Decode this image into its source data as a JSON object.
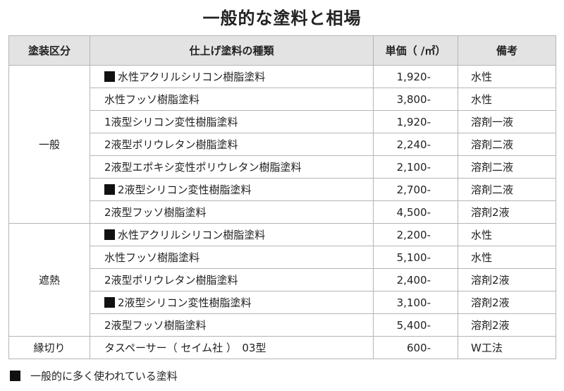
{
  "title": "一般的な塗料と相場",
  "headers": {
    "category": "塗装区分",
    "type": "仕上げ塗料の種類",
    "price": "単価（ /㎡）",
    "note": "備考"
  },
  "groups": [
    {
      "category": "一般",
      "rows": [
        {
          "marked": true,
          "name": "水性アクリルシリコン樹脂塗料",
          "price": "1,920-",
          "note": "水性"
        },
        {
          "marked": false,
          "name": "水性フッソ樹脂塗料",
          "price": "3,800-",
          "note": "水性"
        },
        {
          "marked": false,
          "name": "1液型シリコン変性樹脂塗料",
          "price": "1,920-",
          "note": "溶剤一液"
        },
        {
          "marked": false,
          "name": "2液型ポリウレタン樹脂塗料",
          "price": "2,240-",
          "note": "溶剤二液"
        },
        {
          "marked": false,
          "name": "2液型エポキシ変性ポリウレタン樹脂塗料",
          "price": "2,100-",
          "note": "溶剤二液"
        },
        {
          "marked": true,
          "name": "2液型シリコン変性樹脂塗料",
          "price": "2,700-",
          "note": "溶剤二液"
        },
        {
          "marked": false,
          "name": "2液型フッソ樹脂塗料",
          "price": "4,500-",
          "note": "溶剤2液"
        }
      ]
    },
    {
      "category": "遮熱",
      "rows": [
        {
          "marked": true,
          "name": "水性アクリルシリコン樹脂塗料",
          "price": "2,200-",
          "note": "水性"
        },
        {
          "marked": false,
          "name": "水性フッソ樹脂塗料",
          "price": "5,100-",
          "note": "水性"
        },
        {
          "marked": false,
          "name": "2液型ポリウレタン樹脂塗料",
          "price": "2,400-",
          "note": "溶剤2液"
        },
        {
          "marked": true,
          "name": "2液型シリコン変性樹脂塗料",
          "price": "3,100-",
          "note": "溶剤2液"
        },
        {
          "marked": false,
          "name": "2液型フッソ樹脂塗料",
          "price": "5,400-",
          "note": "溶剤2液"
        }
      ]
    },
    {
      "category": "縁切り",
      "rows": [
        {
          "marked": false,
          "name": "タスペーサー（ セイム社 ）　03型",
          "price": "600-",
          "note": "W工法"
        }
      ]
    }
  ],
  "legend": "一般的に多く使われている塗料"
}
